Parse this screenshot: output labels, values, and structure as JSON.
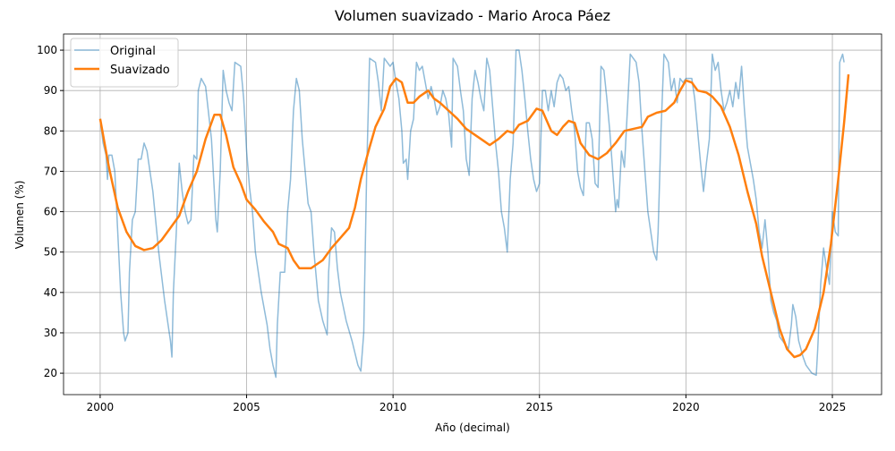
{
  "chart_data": {
    "type": "line",
    "title": "Volumen suavizado - Mario Aroca Páez",
    "x_label": "Año (decimal)",
    "y_label": "Volumen (%)",
    "xlim": [
      1998.75,
      2026.68
    ],
    "ylim": [
      14.7,
      104
    ],
    "xticks": [
      2000,
      2005,
      2010,
      2015,
      2020,
      2025
    ],
    "yticks": [
      20,
      30,
      40,
      50,
      60,
      70,
      80,
      90,
      100
    ],
    "grid": true,
    "legend": "upper left",
    "series": [
      {
        "name": "Original",
        "color": "#1f77b4",
        "width": 1.5,
        "x": [
          2000.0,
          2000.1,
          2000.2,
          2000.25,
          2000.3,
          2000.4,
          2000.5,
          2000.6,
          2000.7,
          2000.8,
          2000.85,
          2000.95,
          2001.0,
          2001.1,
          2001.2,
          2001.3,
          2001.4,
          2001.5,
          2001.6,
          2001.8,
          2002.0,
          2002.2,
          2002.4,
          2002.45,
          2002.5,
          2002.6,
          2002.7,
          2002.8,
          2002.9,
          2003.0,
          2003.1,
          2003.2,
          2003.3,
          2003.35,
          2003.45,
          2003.6,
          2003.8,
          2003.9,
          2003.95,
          2004.0,
          2004.1,
          2004.2,
          2004.3,
          2004.4,
          2004.5,
          2004.6,
          2004.8,
          2004.9,
          2005.0,
          2005.1,
          2005.2,
          2005.3,
          2005.5,
          2005.7,
          2005.8,
          2005.9,
          2006.0,
          2006.05,
          2006.15,
          2006.3,
          2006.4,
          2006.5,
          2006.6,
          2006.7,
          2006.8,
          2006.9,
          2007.0,
          2007.1,
          2007.2,
          2007.3,
          2007.45,
          2007.6,
          2007.75,
          2007.8,
          2007.9,
          2008.0,
          2008.1,
          2008.2,
          2008.4,
          2008.6,
          2008.8,
          2008.9,
          2009.0,
          2009.1,
          2009.2,
          2009.4,
          2009.5,
          2009.6,
          2009.7,
          2009.8,
          2009.9,
          2010.0,
          2010.1,
          2010.2,
          2010.3,
          2010.35,
          2010.45,
          2010.5,
          2010.6,
          2010.7,
          2010.8,
          2010.9,
          2011.0,
          2011.1,
          2011.2,
          2011.3,
          2011.4,
          2011.5,
          2011.6,
          2011.7,
          2011.8,
          2011.9,
          2012.0,
          2012.05,
          2012.2,
          2012.3,
          2012.4,
          2012.5,
          2012.6,
          2012.7,
          2012.8,
          2012.9,
          2013.0,
          2013.1,
          2013.2,
          2013.3,
          2013.4,
          2013.5,
          2013.6,
          2013.7,
          2013.8,
          2013.9,
          2014.0,
          2014.1,
          2014.2,
          2014.3,
          2014.4,
          2014.5,
          2014.6,
          2014.7,
          2014.8,
          2014.9,
          2015.0,
          2015.1,
          2015.2,
          2015.3,
          2015.4,
          2015.5,
          2015.6,
          2015.7,
          2015.8,
          2015.9,
          2016.0,
          2016.1,
          2016.2,
          2016.3,
          2016.4,
          2016.5,
          2016.6,
          2016.7,
          2016.8,
          2016.9,
          2017.0,
          2017.1,
          2017.2,
          2017.3,
          2017.4,
          2017.5,
          2017.6,
          2017.65,
          2017.7,
          2017.8,
          2017.9,
          2018.0,
          2018.1,
          2018.3,
          2018.4,
          2018.5,
          2018.6,
          2018.7,
          2018.8,
          2018.9,
          2019.0,
          2019.05,
          2019.15,
          2019.25,
          2019.4,
          2019.5,
          2019.6,
          2019.7,
          2019.8,
          2019.9,
          2020.0,
          2020.2,
          2020.3,
          2020.4,
          2020.5,
          2020.6,
          2020.7,
          2020.8,
          2020.9,
          2021.0,
          2021.1,
          2021.2,
          2021.3,
          2021.4,
          2021.5,
          2021.6,
          2021.7,
          2021.8,
          2021.9,
          2022.0,
          2022.1,
          2022.2,
          2022.3,
          2022.4,
          2022.5,
          2022.6,
          2022.7,
          2022.8,
          2022.9,
          2023.0,
          2023.1,
          2023.2,
          2023.3,
          2023.4,
          2023.5,
          2023.6,
          2023.65,
          2023.75,
          2023.85,
          2024.0,
          2024.1,
          2024.3,
          2024.45,
          2024.5,
          2024.6,
          2024.7,
          2024.8,
          2024.9,
          2025.0,
          2025.1,
          2025.2,
          2025.25,
          2025.35,
          2025.4
        ],
        "values": [
          83,
          77,
          74,
          68,
          74,
          74,
          70,
          55,
          40,
          30,
          28,
          30,
          45,
          58,
          60,
          73,
          73,
          77,
          75,
          65,
          50,
          38,
          28,
          24,
          40,
          55,
          72,
          65,
          60,
          57,
          58,
          74,
          73,
          90,
          93,
          91,
          78,
          65,
          58,
          55,
          70,
          95,
          90,
          87,
          85,
          97,
          96,
          88,
          75,
          66,
          60,
          50,
          40,
          32,
          26,
          22,
          19,
          32,
          45,
          45,
          60,
          68,
          85,
          93,
          90,
          78,
          70,
          62,
          60,
          50,
          38,
          33,
          29.5,
          45,
          56,
          55,
          46,
          40,
          33,
          28,
          22,
          20.5,
          30,
          70,
          98,
          97,
          92,
          85,
          98,
          97,
          96,
          97,
          92,
          88,
          80,
          72,
          73,
          68,
          80,
          83,
          97,
          95,
          96,
          92,
          88,
          91,
          88,
          84,
          86,
          90,
          88,
          84,
          76,
          98,
          96,
          90,
          85,
          73,
          69,
          88,
          95,
          92,
          88,
          85,
          98,
          95,
          86,
          77,
          70,
          60,
          56,
          50,
          68,
          77,
          100,
          100,
          95,
          88,
          80,
          73,
          68,
          65,
          67,
          90,
          90,
          85,
          90,
          86,
          92,
          94,
          93,
          90,
          91,
          85,
          80,
          70,
          66,
          64,
          82,
          82,
          78,
          67,
          66,
          96,
          95,
          88,
          80,
          70,
          60,
          63,
          61,
          75,
          71,
          85,
          99,
          97,
          92,
          80,
          70,
          60,
          55,
          50,
          48,
          55,
          80,
          99,
          97,
          90,
          93,
          87,
          93,
          92,
          93,
          93,
          88,
          80,
          72,
          65,
          72,
          78,
          99,
          95,
          97,
          90,
          85,
          87,
          90,
          86,
          92,
          88,
          96,
          85,
          76,
          72,
          68,
          63,
          55,
          51,
          58,
          50,
          38,
          35,
          33,
          29,
          28,
          27,
          26,
          32,
          37,
          34,
          28,
          24,
          22,
          20,
          19.5,
          26,
          42,
          51,
          46,
          42,
          60,
          55,
          54,
          97,
          99,
          97
        ]
      },
      {
        "name": "Suavizado",
        "color": "#ff7f0e",
        "width": 2.5,
        "x": [
          2000.0,
          2000.3,
          2000.6,
          2000.9,
          2001.2,
          2001.5,
          2001.8,
          2002.1,
          2002.4,
          2002.7,
          2003.0,
          2003.3,
          2003.6,
          2003.9,
          2004.1,
          2004.3,
          2004.55,
          2004.8,
          2005.0,
          2005.3,
          2005.6,
          2005.9,
          2006.1,
          2006.4,
          2006.6,
          2006.8,
          2007.2,
          2007.6,
          2007.9,
          2008.2,
          2008.5,
          2008.7,
          2008.9,
          2009.2,
          2009.4,
          2009.7,
          2009.9,
          2010.1,
          2010.3,
          2010.5,
          2010.7,
          2010.9,
          2011.2,
          2011.4,
          2011.6,
          2011.9,
          2012.2,
          2012.5,
          2012.8,
          2013.1,
          2013.3,
          2013.6,
          2013.9,
          2014.1,
          2014.3,
          2014.6,
          2014.9,
          2015.1,
          2015.4,
          2015.6,
          2015.8,
          2016.0,
          2016.2,
          2016.4,
          2016.7,
          2017.0,
          2017.3,
          2017.6,
          2017.9,
          2018.2,
          2018.5,
          2018.7,
          2019.0,
          2019.3,
          2019.6,
          2019.8,
          2020.0,
          2020.2,
          2020.4,
          2020.7,
          2020.9,
          2021.2,
          2021.5,
          2021.8,
          2022.1,
          2022.4,
          2022.6,
          2022.9,
          2023.2,
          2023.45,
          2023.7,
          2023.9,
          2024.1,
          2024.4,
          2024.7,
          2024.95,
          2025.2,
          2025.4,
          2025.55
        ],
        "values": [
          83,
          71,
          61,
          55,
          51.5,
          50.5,
          51,
          53,
          56,
          59,
          65,
          70,
          78,
          84,
          84,
          79,
          71,
          67,
          63,
          60.5,
          57.5,
          55,
          52,
          51,
          48,
          46,
          46,
          48,
          51,
          53.5,
          56,
          61,
          68,
          76,
          81,
          85.5,
          91,
          93,
          92,
          87,
          87,
          88.5,
          90,
          88,
          87,
          85,
          83,
          80.5,
          79,
          77.5,
          76.5,
          78,
          80,
          79.5,
          81.5,
          82.5,
          85.5,
          85,
          80,
          79,
          81,
          82.5,
          82,
          77,
          74,
          73,
          74.5,
          77,
          80,
          80.5,
          81,
          83.5,
          84.5,
          85,
          87,
          90,
          92.5,
          92,
          90,
          89.5,
          88.5,
          86,
          81,
          74,
          65,
          57,
          49,
          40,
          31,
          26,
          24,
          24.5,
          26,
          31,
          40,
          52,
          68,
          82,
          94
        ]
      }
    ]
  }
}
